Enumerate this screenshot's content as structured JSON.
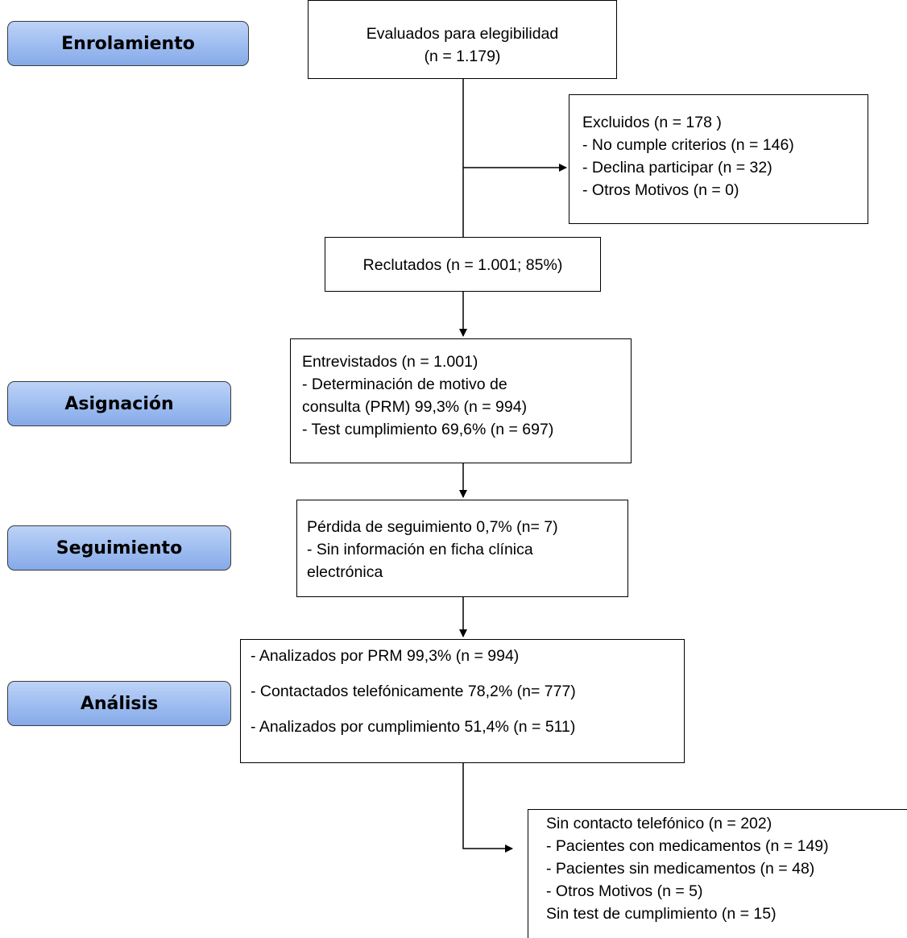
{
  "stages": {
    "enrolamiento": "Enrolamiento",
    "asignacion": "Asignación",
    "seguimiento": "Seguimiento",
    "analisis": "Análisis"
  },
  "boxes": {
    "evaluados": [
      "Evaluados para elegibilidad",
      "(n = 1.179)"
    ],
    "excluidos": [
      "Excluidos  (n = 178 )",
      "- No cumple criterios (n = 146)",
      "- Declina participar (n = 32)",
      "- Otros Motivos (n = 0)"
    ],
    "reclutados": [
      "Reclutados (n = 1.001; 85%)"
    ],
    "entrevistados": [
      "Entrevistados (n = 1.001)",
      "- Determinación de motivo de",
      "consulta (PRM) 99,3% (n = 994)",
      "- Test cumplimiento 69,6% (n = 697)"
    ],
    "perdida": [
      "Pérdida de seguimiento 0,7% (n= 7)",
      "- Sin información en ficha clínica",
      "electrónica"
    ],
    "analizados": [
      "- Analizados por PRM 99,3% (n = 994)",
      "- Contactados telefónicamente 78,2% (n= 777)",
      "- Analizados por cumplimiento 51,4% (n = 511)"
    ],
    "sin_contacto": [
      "Sin contacto telefónico (n = 202)",
      "- Pacientes con medicamentos (n = 149)",
      "- Pacientes sin medicamentos (n = 48)",
      "- Otros Motivos (n = 5)",
      "Sin test de cumplimiento  (n = 15)"
    ]
  }
}
